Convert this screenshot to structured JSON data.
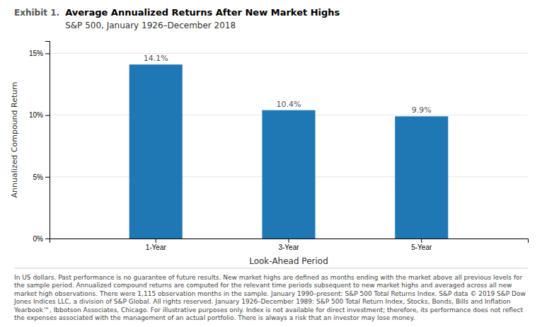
{
  "chart_data": {
    "type": "bar",
    "exhibit_label": "Exhibit 1.",
    "title": "Average Annualized Returns After New Market Highs",
    "subtitle": "S&P 500, January 1926–December 2018",
    "categories": [
      "1-Year",
      "3-Year",
      "5-Year"
    ],
    "values": [
      14.1,
      10.4,
      9.9
    ],
    "value_labels": [
      "14.1%",
      "10.4%",
      "9.9%"
    ],
    "data_labels": true,
    "ylabel": "Annualized Compound Return",
    "xlabel": "Look-Ahead Period",
    "ylim": [
      0,
      16
    ],
    "yticks": [
      {
        "value": 0,
        "label": "0%"
      },
      {
        "value": 5,
        "label": "5%"
      },
      {
        "value": 10,
        "label": "10%"
      },
      {
        "value": 15,
        "label": "15%"
      }
    ],
    "grid": true,
    "footnote": "In US dollars. Past performance is no guarantee of future results. New market highs are defined as months ending with the market above all previous levels for the sample period. Annualized compound returns are computed for the relevant time periods subsequent to new market highs and averaged across all new market high observations. There were 1,115 observation months in the sample. January 1990–present: S&P 500 Total Returns Index. S&P data © 2019 S&P Dow Jones Indices LLC, a division of S&P Global. All rights reserved. January 1926–December 1989: S&P 500 Total Return Index, Stocks, Bonds, Bills and Inflation Yearbook™, Ibbotson Associates, Chicago. For illustrative purposes only. Index is not available for direct investment; therefore, its performance does not reflect the expenses associated with the management of an actual portfolio. There is always a risk that an investor may lose money."
  }
}
